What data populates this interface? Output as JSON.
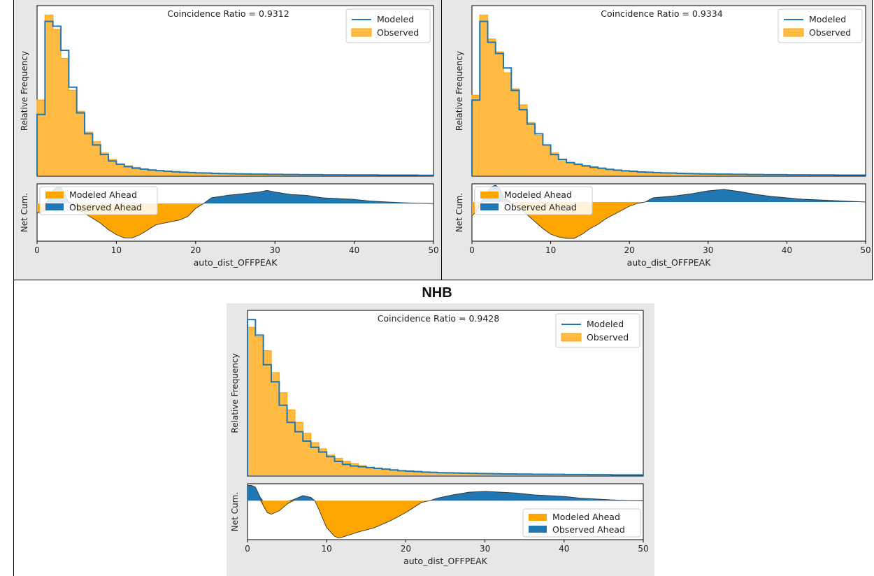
{
  "section_title": "NHB",
  "legend_top": {
    "modeled": "Modeled",
    "observed": "Observed"
  },
  "legend_bottom": {
    "modeled_ahead": "Modeled Ahead",
    "observed_ahead": "Observed Ahead"
  },
  "colors": {
    "modeled": "#1f77b4",
    "observed": "#ffa500",
    "observed_fill": "#ffbb44",
    "panel_bg": "#e7e7e7"
  },
  "chart_data": [
    {
      "type": "area",
      "name": "panel-top-left",
      "coincidence_label": "Coincidence Ratio = 0.9312",
      "ylabel_top": "Relative Frequency",
      "ylabel_bottom": "Net Cum.",
      "xlabel": "auto_dist_OFFPEAK",
      "xlim": [
        0,
        50
      ],
      "xticks": [
        "0",
        "10",
        "20",
        "30",
        "40",
        "50"
      ],
      "bin_width": 1,
      "observed": [
        0.47,
        1.0,
        0.91,
        0.73,
        0.53,
        0.4,
        0.27,
        0.21,
        0.14,
        0.1,
        0.07,
        0.06,
        0.05,
        0.04,
        0.035,
        0.03,
        0.027,
        0.024,
        0.02,
        0.018,
        0.016,
        0.014,
        0.012,
        0.011,
        0.01,
        0.009,
        0.008,
        0.008,
        0.007,
        0.007,
        0.006,
        0.006,
        0.005,
        0.005,
        0.005,
        0.004,
        0.004,
        0.004,
        0.003,
        0.003,
        0.003,
        0.003,
        0.002,
        0.002,
        0.002,
        0.002,
        0.002,
        0.001,
        0.001,
        0.001
      ],
      "modeled": [
        0.38,
        0.96,
        0.93,
        0.78,
        0.55,
        0.39,
        0.26,
        0.19,
        0.13,
        0.09,
        0.07,
        0.055,
        0.045,
        0.04,
        0.034,
        0.03,
        0.026,
        0.023,
        0.02,
        0.018,
        0.016,
        0.015,
        0.013,
        0.012,
        0.011,
        0.01,
        0.009,
        0.008,
        0.008,
        0.007,
        0.007,
        0.006,
        0.006,
        0.005,
        0.005,
        0.005,
        0.004,
        0.004,
        0.004,
        0.003,
        0.003,
        0.003,
        0.003,
        0.002,
        0.002,
        0.002,
        0.002,
        0.002,
        0.001,
        0.001
      ],
      "net_cum": {
        "x": [
          0,
          0.5,
          1,
          1.5,
          2,
          2.5,
          3,
          3.5,
          4,
          5,
          6,
          7,
          8,
          9,
          10,
          11,
          12,
          13,
          14,
          15,
          16,
          17,
          18,
          19,
          20,
          21,
          22,
          24,
          26,
          28,
          29,
          30,
          32,
          34,
          36,
          38,
          40,
          42,
          44,
          46,
          48,
          50
        ],
        "y": [
          -0.55,
          -0.55,
          -0.4,
          0.3,
          0.8,
          1.0,
          1.0,
          0.6,
          0.1,
          -0.3,
          -0.6,
          -0.9,
          -1.2,
          -1.6,
          -1.9,
          -2.1,
          -2.1,
          -1.9,
          -1.6,
          -1.3,
          -1.2,
          -1.1,
          -1.0,
          -0.8,
          -0.3,
          0.0,
          0.35,
          0.5,
          0.6,
          0.7,
          0.8,
          0.7,
          0.55,
          0.5,
          0.35,
          0.3,
          0.25,
          0.15,
          0.1,
          0.05,
          0.02,
          0.0
        ]
      },
      "net_ylim": [
        -2.3,
        1.2
      ],
      "legend_bottom_position": "upper-left",
      "show_ylabel_top": true
    },
    {
      "type": "area",
      "name": "panel-top-right",
      "coincidence_label": "Coincidence Ratio = 0.9334",
      "ylabel_top": "Relative Frequency",
      "ylabel_bottom": "Net Cum.",
      "xlabel": "auto_dist_OFFPEAK",
      "xlim": [
        0,
        50
      ],
      "xticks": [
        "0",
        "10",
        "20",
        "30",
        "40",
        "50"
      ],
      "bin_width": 1,
      "observed": [
        0.5,
        1.0,
        0.85,
        0.77,
        0.64,
        0.54,
        0.44,
        0.33,
        0.25,
        0.19,
        0.14,
        0.1,
        0.08,
        0.066,
        0.055,
        0.046,
        0.04,
        0.035,
        0.03,
        0.027,
        0.024,
        0.021,
        0.019,
        0.017,
        0.015,
        0.014,
        0.013,
        0.012,
        0.011,
        0.01,
        0.009,
        0.008,
        0.008,
        0.007,
        0.006,
        0.006,
        0.006,
        0.005,
        0.005,
        0.004,
        0.004,
        0.004,
        0.003,
        0.003,
        0.003,
        0.003,
        0.002,
        0.002,
        0.002,
        0.002
      ],
      "modeled": [
        0.47,
        0.96,
        0.83,
        0.76,
        0.67,
        0.53,
        0.41,
        0.32,
        0.26,
        0.19,
        0.13,
        0.1,
        0.08,
        0.07,
        0.06,
        0.052,
        0.045,
        0.038,
        0.033,
        0.029,
        0.026,
        0.022,
        0.02,
        0.018,
        0.016,
        0.015,
        0.013,
        0.012,
        0.011,
        0.01,
        0.009,
        0.008,
        0.008,
        0.007,
        0.007,
        0.006,
        0.006,
        0.005,
        0.005,
        0.005,
        0.004,
        0.004,
        0.004,
        0.003,
        0.003,
        0.003,
        0.002,
        0.002,
        0.002,
        0.002
      ],
      "net_cum": {
        "x": [
          0,
          0.5,
          1,
          1.5,
          2,
          2.5,
          3,
          3.5,
          4,
          5,
          6,
          7,
          8,
          9,
          10,
          11,
          12,
          13,
          14,
          15,
          16,
          17,
          18,
          19,
          20,
          21,
          22,
          23,
          24,
          26,
          28,
          30,
          32,
          34,
          36,
          38,
          40,
          42,
          44,
          46,
          48,
          50
        ],
        "y": [
          -1.0,
          -0.7,
          -0.3,
          0.3,
          0.8,
          1.1,
          1.2,
          1.0,
          0.4,
          -0.1,
          -0.4,
          -0.9,
          -1.4,
          -1.9,
          -2.3,
          -2.5,
          -2.6,
          -2.6,
          -2.3,
          -1.9,
          -1.6,
          -1.2,
          -0.9,
          -0.6,
          -0.3,
          -0.1,
          0.0,
          0.3,
          0.35,
          0.45,
          0.6,
          0.8,
          0.9,
          0.75,
          0.55,
          0.4,
          0.3,
          0.2,
          0.15,
          0.1,
          0.05,
          0.0
        ]
      },
      "net_ylim": [
        -2.8,
        1.3
      ],
      "legend_bottom_position": "upper-left",
      "show_ylabel_top": true
    },
    {
      "type": "area",
      "name": "panel-bottom-center",
      "coincidence_label": "Coincidence Ratio = 0.9428",
      "ylabel_top": "Relative Frequency",
      "ylabel_bottom": "Net Cum.",
      "xlabel": "auto_dist_OFFPEAK",
      "xlim": [
        0,
        50
      ],
      "xticks": [
        "0",
        "10",
        "20",
        "30",
        "40",
        "50"
      ],
      "bin_width": 1,
      "observed": [
        0.95,
        0.89,
        0.8,
        0.66,
        0.53,
        0.42,
        0.34,
        0.27,
        0.21,
        0.17,
        0.13,
        0.11,
        0.09,
        0.075,
        0.062,
        0.052,
        0.044,
        0.038,
        0.033,
        0.029,
        0.026,
        0.023,
        0.021,
        0.019,
        0.017,
        0.015,
        0.014,
        0.013,
        0.012,
        0.011,
        0.01,
        0.009,
        0.009,
        0.008,
        0.008,
        0.007,
        0.007,
        0.006,
        0.006,
        0.006,
        0.005,
        0.005,
        0.005,
        0.005,
        0.004,
        0.004,
        0.004,
        0.003,
        0.003,
        0.003
      ],
      "modeled": [
        1.0,
        0.9,
        0.71,
        0.6,
        0.45,
        0.34,
        0.28,
        0.22,
        0.18,
        0.15,
        0.12,
        0.09,
        0.07,
        0.06,
        0.055,
        0.05,
        0.045,
        0.04,
        0.035,
        0.03,
        0.027,
        0.024,
        0.021,
        0.019,
        0.017,
        0.016,
        0.015,
        0.014,
        0.013,
        0.012,
        0.011,
        0.01,
        0.009,
        0.009,
        0.008,
        0.008,
        0.007,
        0.007,
        0.006,
        0.006,
        0.005,
        0.005,
        0.005,
        0.004,
        0.004,
        0.004,
        0.003,
        0.003,
        0.003,
        0.003
      ],
      "net_cum": {
        "x": [
          0,
          0.5,
          1,
          1.5,
          2,
          2.5,
          3,
          4,
          5,
          6,
          7,
          8,
          8.5,
          9,
          10,
          11,
          11.5,
          12,
          13,
          14,
          16,
          18,
          20,
          21,
          22,
          23,
          24,
          26,
          28,
          30,
          32,
          34,
          36,
          38,
          40,
          42,
          44,
          46,
          48,
          50
        ],
        "y": [
          0.9,
          0.9,
          0.8,
          0.3,
          -0.3,
          -0.7,
          -0.8,
          -0.6,
          -0.2,
          0.1,
          0.3,
          0.2,
          0.0,
          -0.5,
          -1.6,
          -2.1,
          -2.2,
          -2.15,
          -2.0,
          -1.85,
          -1.6,
          -1.2,
          -0.7,
          -0.4,
          -0.1,
          0.0,
          0.15,
          0.35,
          0.5,
          0.55,
          0.5,
          0.45,
          0.35,
          0.3,
          0.25,
          0.15,
          0.1,
          0.05,
          0.01,
          0.0
        ]
      },
      "net_ylim": [
        -2.3,
        1.0
      ],
      "legend_bottom_position": "lower-right",
      "show_ylabel_top": true
    }
  ]
}
